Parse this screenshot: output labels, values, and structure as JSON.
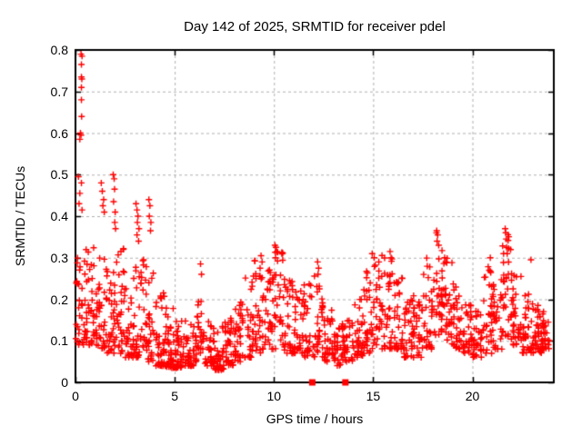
{
  "colors": {
    "marker": "#ff0000",
    "grid": "#b0b0b0",
    "axis": "#000000",
    "background": "#ffffff",
    "text": "#000000"
  },
  "chart_data": {
    "type": "scatter",
    "title": "Day 142 of 2025, SRMTID for receiver pdel",
    "xlabel": "GPS time / hours",
    "ylabel": "SRMTID / TECUs",
    "xlim": [
      0,
      24.1
    ],
    "ylim": [
      0,
      0.8
    ],
    "xticks": [
      [
        0,
        "0"
      ],
      [
        5,
        "5"
      ],
      [
        10,
        "10"
      ],
      [
        15,
        "15"
      ],
      [
        20,
        "20"
      ]
    ],
    "yticks": [
      [
        0,
        "0"
      ],
      [
        0.1,
        "0.1"
      ],
      [
        0.2,
        "0.2"
      ],
      [
        0.3,
        "0.3"
      ],
      [
        0.4,
        "0.4"
      ],
      [
        0.5,
        "0.5"
      ],
      [
        0.6,
        "0.6"
      ],
      [
        0.7,
        "0.7"
      ],
      [
        0.8,
        "0.8"
      ]
    ],
    "grid": true,
    "legend": "none",
    "marker": "plus",
    "marker_color": "#ff0000",
    "seed": 142,
    "density_segments": [
      [
        0.0,
        0.5,
        34,
        0.09,
        0.3,
        1.4
      ],
      [
        0.5,
        1.0,
        38,
        0.09,
        0.33,
        1.6
      ],
      [
        1.0,
        1.5,
        36,
        0.08,
        0.3,
        1.6
      ],
      [
        1.5,
        2.0,
        36,
        0.07,
        0.28,
        1.6
      ],
      [
        2.0,
        2.5,
        34,
        0.07,
        0.33,
        1.7
      ],
      [
        2.5,
        3.0,
        34,
        0.06,
        0.28,
        1.7
      ],
      [
        3.0,
        3.5,
        34,
        0.06,
        0.3,
        1.7
      ],
      [
        3.5,
        4.0,
        34,
        0.05,
        0.28,
        1.8
      ],
      [
        4.0,
        4.5,
        38,
        0.04,
        0.22,
        1.9
      ],
      [
        4.5,
        5.0,
        42,
        0.035,
        0.18,
        2.0
      ],
      [
        5.0,
        5.5,
        42,
        0.035,
        0.15,
        2.0
      ],
      [
        5.5,
        6.0,
        38,
        0.04,
        0.16,
        1.9
      ],
      [
        6.0,
        6.5,
        34,
        0.05,
        0.22,
        1.9
      ],
      [
        6.5,
        7.0,
        34,
        0.04,
        0.15,
        1.8
      ],
      [
        7.0,
        7.5,
        36,
        0.03,
        0.14,
        1.8
      ],
      [
        7.5,
        8.0,
        36,
        0.04,
        0.16,
        1.8
      ],
      [
        8.0,
        8.5,
        34,
        0.05,
        0.2,
        1.7
      ],
      [
        8.5,
        9.0,
        32,
        0.06,
        0.26,
        1.7
      ],
      [
        9.0,
        9.5,
        32,
        0.07,
        0.3,
        1.6
      ],
      [
        9.5,
        10.0,
        32,
        0.08,
        0.28,
        1.5
      ],
      [
        10.0,
        10.5,
        32,
        0.08,
        0.32,
        1.5
      ],
      [
        10.5,
        11.0,
        32,
        0.07,
        0.25,
        1.6
      ],
      [
        11.0,
        11.5,
        32,
        0.07,
        0.22,
        1.6
      ],
      [
        11.5,
        12.0,
        30,
        0.06,
        0.26,
        1.6
      ],
      [
        12.0,
        12.5,
        32,
        0.06,
        0.28,
        1.5
      ],
      [
        12.5,
        13.0,
        32,
        0.05,
        0.18,
        1.8
      ],
      [
        13.0,
        13.5,
        32,
        0.04,
        0.15,
        1.8
      ],
      [
        13.5,
        14.0,
        32,
        0.05,
        0.16,
        1.8
      ],
      [
        14.0,
        14.5,
        32,
        0.06,
        0.2,
        1.7
      ],
      [
        14.5,
        15.0,
        32,
        0.07,
        0.29,
        1.5
      ],
      [
        15.0,
        15.5,
        32,
        0.08,
        0.31,
        1.5
      ],
      [
        15.5,
        16.0,
        32,
        0.08,
        0.3,
        1.5
      ],
      [
        16.0,
        16.5,
        32,
        0.08,
        0.28,
        1.5
      ],
      [
        16.5,
        17.0,
        32,
        0.06,
        0.2,
        1.7
      ],
      [
        17.0,
        17.5,
        32,
        0.06,
        0.22,
        1.7
      ],
      [
        17.5,
        18.0,
        32,
        0.08,
        0.3,
        1.5
      ],
      [
        18.0,
        18.5,
        34,
        0.1,
        0.36,
        1.4
      ],
      [
        18.5,
        19.0,
        32,
        0.09,
        0.3,
        1.5
      ],
      [
        19.0,
        19.5,
        32,
        0.08,
        0.24,
        1.6
      ],
      [
        19.5,
        20.0,
        32,
        0.07,
        0.2,
        1.7
      ],
      [
        20.0,
        20.5,
        32,
        0.06,
        0.18,
        1.7
      ],
      [
        20.5,
        21.0,
        32,
        0.07,
        0.28,
        1.7
      ],
      [
        21.0,
        21.5,
        32,
        0.08,
        0.25,
        1.6
      ],
      [
        21.5,
        22.0,
        34,
        0.1,
        0.36,
        1.4
      ],
      [
        22.0,
        22.5,
        32,
        0.09,
        0.26,
        1.6
      ],
      [
        22.5,
        23.0,
        36,
        0.07,
        0.22,
        1.7
      ],
      [
        23.0,
        23.5,
        40,
        0.07,
        0.2,
        1.7
      ],
      [
        23.5,
        23.9,
        30,
        0.08,
        0.18,
        1.7
      ]
    ],
    "outlier_points": [
      [
        0.28,
        0.79
      ],
      [
        0.33,
        0.785
      ],
      [
        0.3,
        0.765
      ],
      [
        0.3,
        0.735
      ],
      [
        0.32,
        0.73
      ],
      [
        0.3,
        0.71
      ],
      [
        0.3,
        0.68
      ],
      [
        0.31,
        0.64
      ],
      [
        0.25,
        0.6
      ],
      [
        0.28,
        0.595
      ],
      [
        0.22,
        0.585
      ],
      [
        0.15,
        0.495
      ],
      [
        0.3,
        0.48
      ],
      [
        0.22,
        0.455
      ],
      [
        0.18,
        0.43
      ],
      [
        0.33,
        0.415
      ],
      [
        1.3,
        0.48
      ],
      [
        1.35,
        0.46
      ],
      [
        1.42,
        0.44
      ],
      [
        1.38,
        0.425
      ],
      [
        1.45,
        0.41
      ],
      [
        1.9,
        0.5
      ],
      [
        1.95,
        0.49
      ],
      [
        1.97,
        0.465
      ],
      [
        1.92,
        0.435
      ],
      [
        2.0,
        0.41
      ],
      [
        1.98,
        0.385
      ],
      [
        2.02,
        0.37
      ],
      [
        3.05,
        0.43
      ],
      [
        3.1,
        0.415
      ],
      [
        3.15,
        0.4
      ],
      [
        3.12,
        0.385
      ],
      [
        3.2,
        0.37
      ],
      [
        3.1,
        0.355
      ],
      [
        3.18,
        0.34
      ],
      [
        3.7,
        0.44
      ],
      [
        3.75,
        0.425
      ],
      [
        3.72,
        0.4
      ],
      [
        3.8,
        0.385
      ],
      [
        3.78,
        0.365
      ],
      [
        6.3,
        0.285
      ],
      [
        6.35,
        0.26
      ],
      [
        9.35,
        0.305
      ],
      [
        9.4,
        0.29
      ],
      [
        9.3,
        0.275
      ],
      [
        10.05,
        0.33
      ],
      [
        10.1,
        0.325
      ],
      [
        10.15,
        0.315
      ],
      [
        10.08,
        0.3
      ],
      [
        12.2,
        0.29
      ],
      [
        12.25,
        0.275
      ],
      [
        12.22,
        0.26
      ],
      [
        14.95,
        0.31
      ],
      [
        15.05,
        0.3
      ],
      [
        15.85,
        0.315
      ],
      [
        15.9,
        0.3
      ],
      [
        18.2,
        0.365
      ],
      [
        18.25,
        0.355
      ],
      [
        18.22,
        0.34
      ],
      [
        18.3,
        0.33
      ],
      [
        18.6,
        0.3
      ],
      [
        18.65,
        0.29
      ],
      [
        20.9,
        0.3
      ],
      [
        20.85,
        0.27
      ],
      [
        21.65,
        0.37
      ],
      [
        21.68,
        0.36
      ],
      [
        21.7,
        0.345
      ],
      [
        21.72,
        0.325
      ],
      [
        21.75,
        0.31
      ],
      [
        22.95,
        0.295
      ]
    ],
    "axis_markers": {
      "marker": "filled-square",
      "y": 0,
      "x": [
        11.93,
        13.6
      ]
    }
  }
}
